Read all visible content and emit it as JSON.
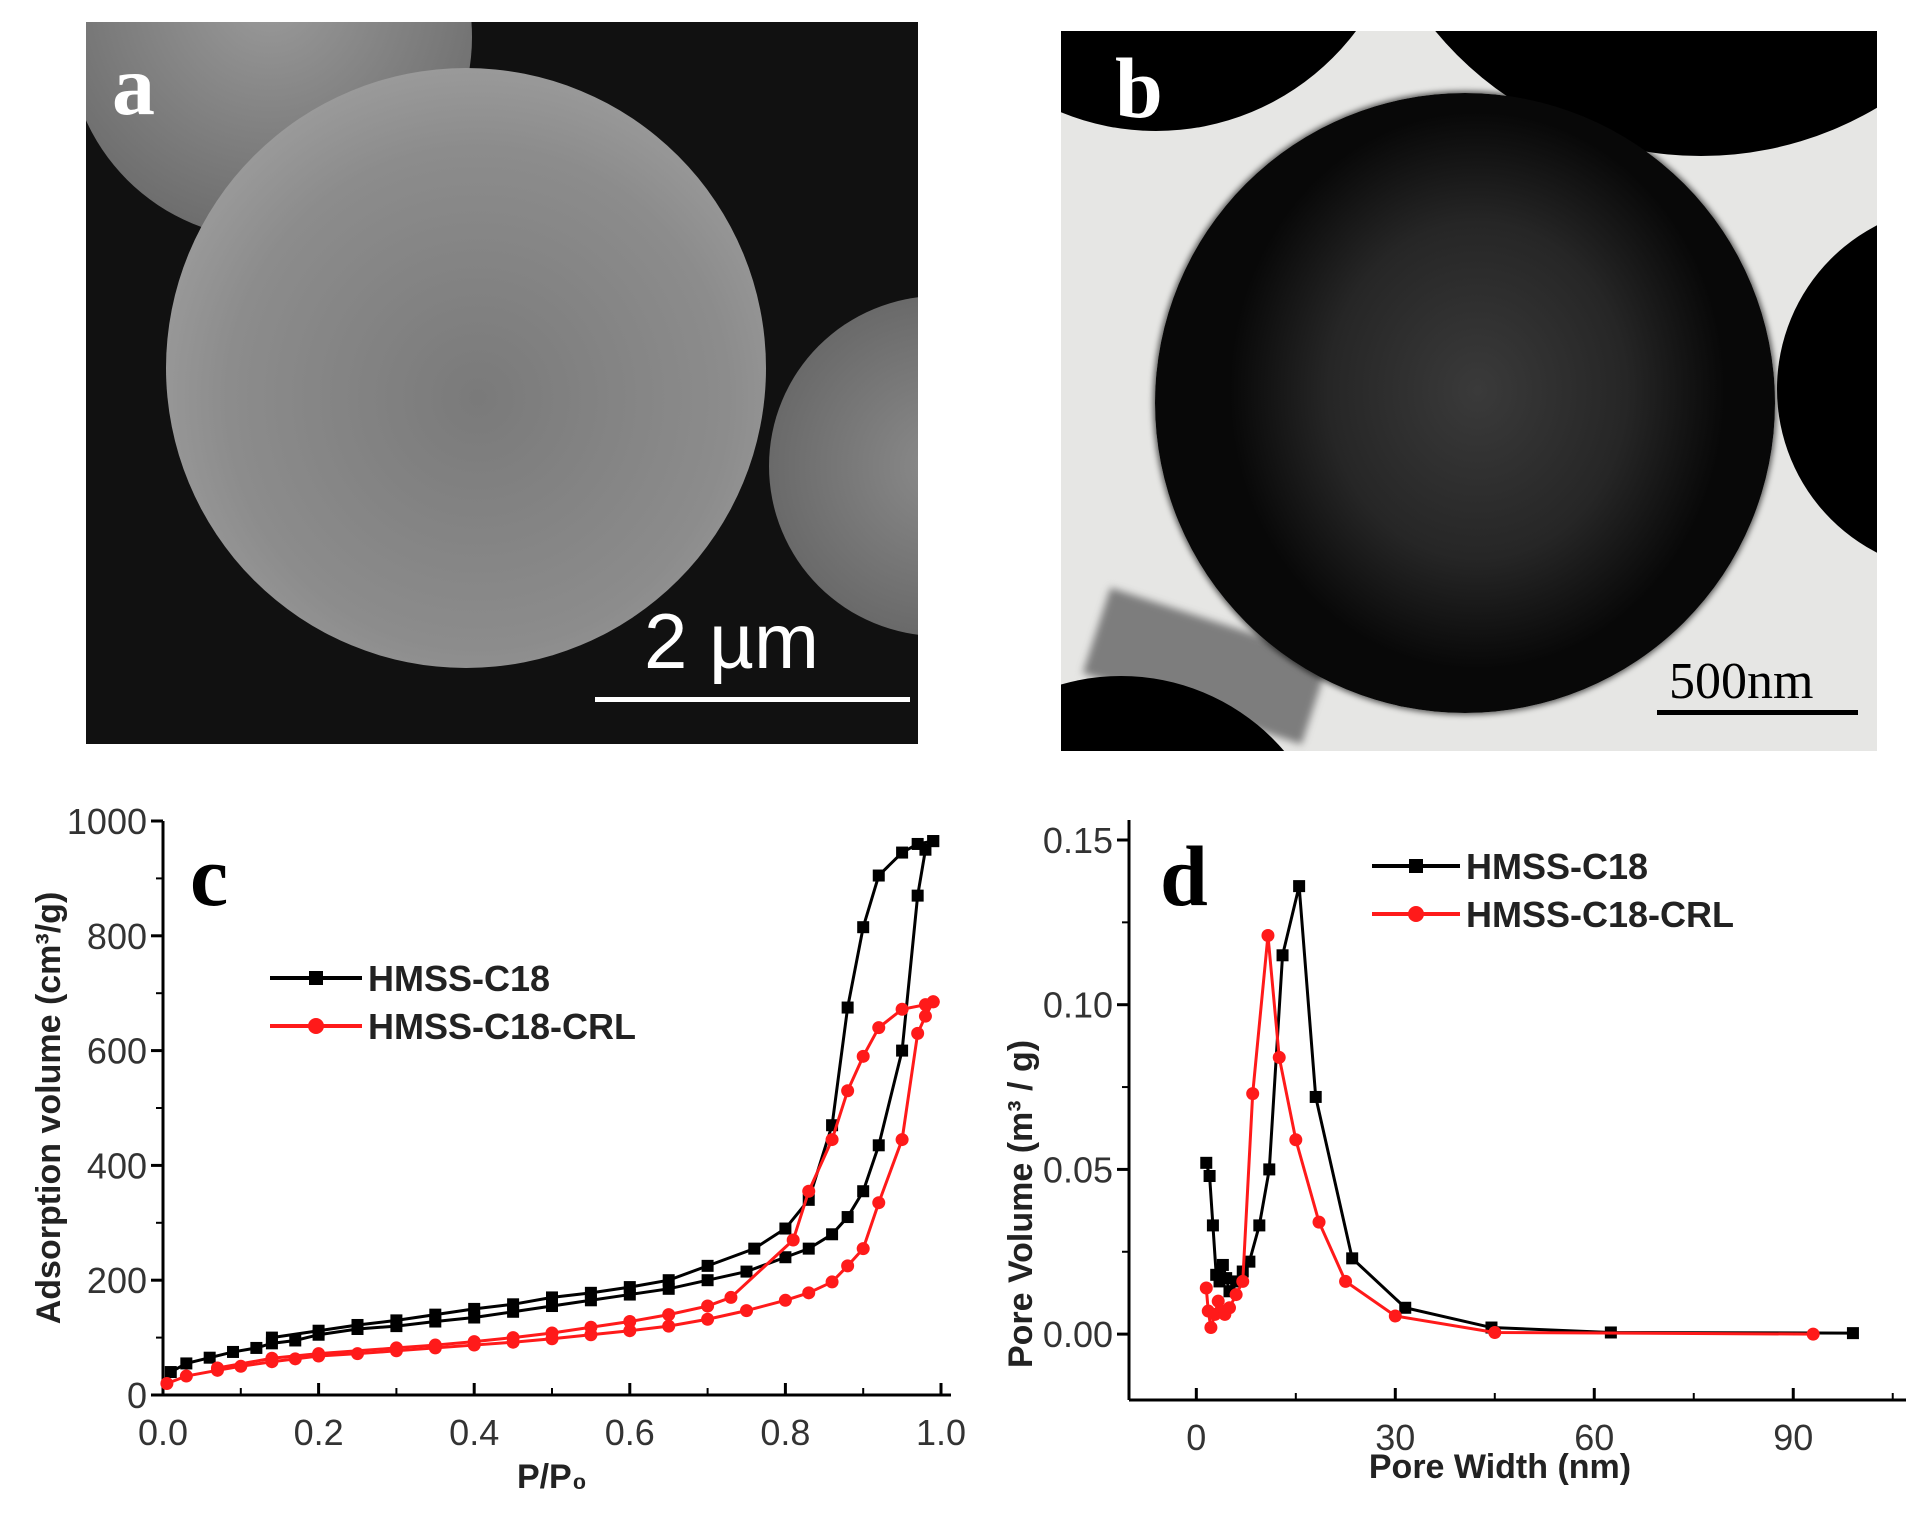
{
  "panels": {
    "a": {
      "label": "a",
      "scale_bar": "2 µm"
    },
    "b": {
      "label": "b",
      "scale_bar": "500nm"
    }
  },
  "colors": {
    "series_black": "#000000",
    "series_red": "#ff1a1a"
  },
  "chart_data": [
    {
      "panel_label": "c",
      "type": "line",
      "xlabel": "P/P₀",
      "ylabel": "Adsorption volume (cm³/g)",
      "xlim": [
        0,
        1.0
      ],
      "ylim": [
        0,
        1000
      ],
      "xticks": [
        "0.0",
        "0.2",
        "0.4",
        "0.6",
        "0.8",
        "1.0"
      ],
      "yticks": [
        "0",
        "200",
        "400",
        "600",
        "800",
        "1000"
      ],
      "grid": false,
      "legend": "upper-left",
      "series": [
        {
          "name": "HMSS-C18",
          "color": "#000000",
          "marker": "square",
          "branches": [
            [
              [
                0.01,
                40
              ],
              [
                0.03,
                55
              ],
              [
                0.06,
                65
              ],
              [
                0.09,
                75
              ],
              [
                0.12,
                82
              ],
              [
                0.14,
                90
              ],
              [
                0.17,
                95
              ],
              [
                0.2,
                105
              ],
              [
                0.25,
                115
              ],
              [
                0.3,
                120
              ],
              [
                0.35,
                128
              ],
              [
                0.4,
                135
              ],
              [
                0.45,
                145
              ],
              [
                0.5,
                155
              ],
              [
                0.55,
                165
              ],
              [
                0.6,
                175
              ],
              [
                0.65,
                185
              ],
              [
                0.7,
                200
              ],
              [
                0.75,
                215
              ],
              [
                0.8,
                240
              ],
              [
                0.83,
                255
              ],
              [
                0.86,
                280
              ],
              [
                0.88,
                310
              ],
              [
                0.9,
                355
              ],
              [
                0.92,
                435
              ],
              [
                0.95,
                600
              ],
              [
                0.97,
                870
              ],
              [
                0.98,
                950
              ],
              [
                0.99,
                965
              ]
            ],
            [
              [
                0.99,
                965
              ],
              [
                0.97,
                960
              ],
              [
                0.95,
                945
              ],
              [
                0.92,
                905
              ],
              [
                0.9,
                815
              ],
              [
                0.88,
                675
              ],
              [
                0.86,
                470
              ],
              [
                0.83,
                340
              ],
              [
                0.8,
                290
              ],
              [
                0.76,
                255
              ],
              [
                0.7,
                225
              ],
              [
                0.65,
                200
              ],
              [
                0.6,
                188
              ],
              [
                0.55,
                178
              ],
              [
                0.5,
                170
              ],
              [
                0.45,
                158
              ],
              [
                0.4,
                150
              ],
              [
                0.35,
                140
              ],
              [
                0.3,
                130
              ],
              [
                0.25,
                122
              ],
              [
                0.2,
                112
              ],
              [
                0.14,
                100
              ]
            ]
          ]
        },
        {
          "name": "HMSS-C18-CRL",
          "color": "#ff1a1a",
          "marker": "circle",
          "branches": [
            [
              [
                0.005,
                20
              ],
              [
                0.03,
                33
              ],
              [
                0.07,
                43
              ],
              [
                0.1,
                50
              ],
              [
                0.14,
                58
              ],
              [
                0.17,
                63
              ],
              [
                0.2,
                68
              ],
              [
                0.25,
                72
              ],
              [
                0.3,
                77
              ],
              [
                0.35,
                82
              ],
              [
                0.4,
                87
              ],
              [
                0.45,
                92
              ],
              [
                0.5,
                98
              ],
              [
                0.55,
                105
              ],
              [
                0.6,
                112
              ],
              [
                0.65,
                120
              ],
              [
                0.7,
                132
              ],
              [
                0.75,
                147
              ],
              [
                0.8,
                165
              ],
              [
                0.83,
                178
              ],
              [
                0.86,
                197
              ],
              [
                0.88,
                225
              ],
              [
                0.9,
                255
              ],
              [
                0.92,
                335
              ],
              [
                0.95,
                445
              ],
              [
                0.97,
                630
              ],
              [
                0.98,
                660
              ],
              [
                0.99,
                685
              ]
            ],
            [
              [
                0.99,
                685
              ],
              [
                0.98,
                680
              ],
              [
                0.95,
                672
              ],
              [
                0.92,
                640
              ],
              [
                0.9,
                590
              ],
              [
                0.88,
                530
              ],
              [
                0.86,
                445
              ],
              [
                0.83,
                355
              ],
              [
                0.81,
                270
              ],
              [
                0.73,
                170
              ],
              [
                0.7,
                155
              ],
              [
                0.65,
                140
              ],
              [
                0.6,
                128
              ],
              [
                0.55,
                118
              ],
              [
                0.5,
                108
              ],
              [
                0.45,
                100
              ],
              [
                0.4,
                93
              ],
              [
                0.35,
                87
              ],
              [
                0.3,
                82
              ],
              [
                0.2,
                72
              ],
              [
                0.14,
                64
              ],
              [
                0.07,
                47
              ]
            ]
          ]
        }
      ]
    },
    {
      "panel_label": "d",
      "type": "line",
      "xlabel": "Pore Width (nm)",
      "ylabel": "Pore Volume (m³ / g)",
      "xlim": [
        -10,
        107
      ],
      "ylim": [
        -0.02,
        0.15
      ],
      "xticks": [
        "0",
        "30",
        "60",
        "90"
      ],
      "yticks": [
        "0.00",
        "0.05",
        "0.10",
        "0.15"
      ],
      "grid": false,
      "legend": "top-center",
      "series": [
        {
          "name": "HMSS-C18",
          "color": "#000000",
          "marker": "square",
          "branches": [
            [
              [
                1.5,
                0.052
              ],
              [
                2,
                0.048
              ],
              [
                2.5,
                0.033
              ],
              [
                3,
                0.018
              ],
              [
                3.5,
                0.016
              ],
              [
                4,
                0.021
              ],
              [
                4.5,
                0.017
              ],
              [
                5,
                0.013
              ],
              [
                6,
                0.016
              ],
              [
                7,
                0.019
              ],
              [
                8,
                0.022
              ],
              [
                9.5,
                0.033
              ],
              [
                11,
                0.05
              ],
              [
                13,
                0.115
              ],
              [
                15.5,
                0.136
              ],
              [
                18,
                0.072
              ],
              [
                23.5,
                0.023
              ],
              [
                31.5,
                0.008
              ],
              [
                44.5,
                0.002
              ],
              [
                62.5,
                0.0005
              ],
              [
                99,
                0.0003
              ]
            ]
          ]
        },
        {
          "name": "HMSS-C18-CRL",
          "color": "#ff1a1a",
          "marker": "circle",
          "branches": [
            [
              [
                1.5,
                0.014
              ],
              [
                1.8,
                0.007
              ],
              [
                2.2,
                0.002
              ],
              [
                2.8,
                0.006
              ],
              [
                3.3,
                0.01
              ],
              [
                3.8,
                0.007
              ],
              [
                4.3,
                0.006
              ],
              [
                5,
                0.008
              ],
              [
                6,
                0.012
              ],
              [
                7,
                0.016
              ],
              [
                8.5,
                0.073
              ],
              [
                10.8,
                0.121
              ],
              [
                12.5,
                0.084
              ],
              [
                15,
                0.059
              ],
              [
                18.5,
                0.034
              ],
              [
                22.5,
                0.016
              ],
              [
                30,
                0.0055
              ],
              [
                45,
                0.0005
              ],
              [
                93,
                0.0
              ]
            ]
          ]
        }
      ]
    }
  ]
}
